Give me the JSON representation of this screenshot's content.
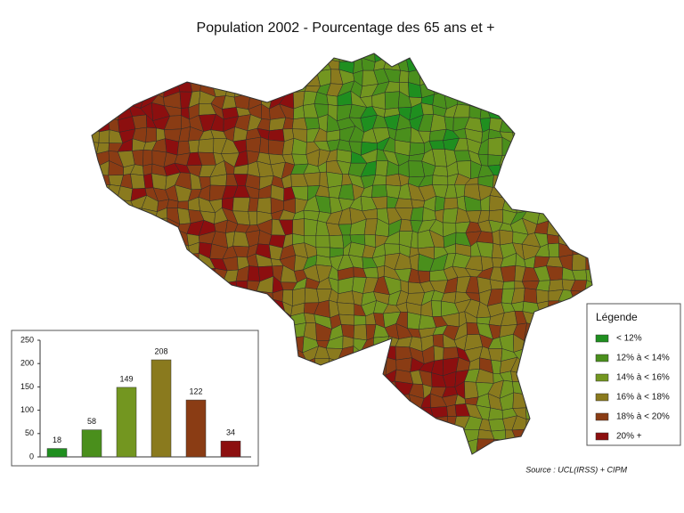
{
  "title": "Population 2002 - Pourcentage des 65 ans et +",
  "legend": {
    "title": "Légende",
    "items": [
      {
        "label": "< 12%",
        "color": "#1f8f1f"
      },
      {
        "label": "12% à < 14%",
        "color": "#4a8f1c"
      },
      {
        "label": "14% à < 16%",
        "color": "#739620"
      },
      {
        "label": "16% à < 18%",
        "color": "#8a7a1e"
      },
      {
        "label": "18% à < 20%",
        "color": "#8a3c14"
      },
      {
        "label": "20% +",
        "color": "#8c0f0f"
      }
    ]
  },
  "chart_data": {
    "type": "bar",
    "categories": [
      null,
      null,
      null,
      null,
      null,
      null
    ],
    "values": [
      18,
      58,
      149,
      208,
      122,
      34
    ],
    "colors": [
      "#1f8f1f",
      "#4a8f1c",
      "#739620",
      "#8a7a1e",
      "#8a3c14",
      "#8c0f0f"
    ],
    "ylim": [
      0,
      250
    ],
    "yticks": [
      0,
      50,
      100,
      150,
      200,
      250
    ],
    "grid": false
  },
  "source": "Source : UCL(IRSS) + CIPM"
}
